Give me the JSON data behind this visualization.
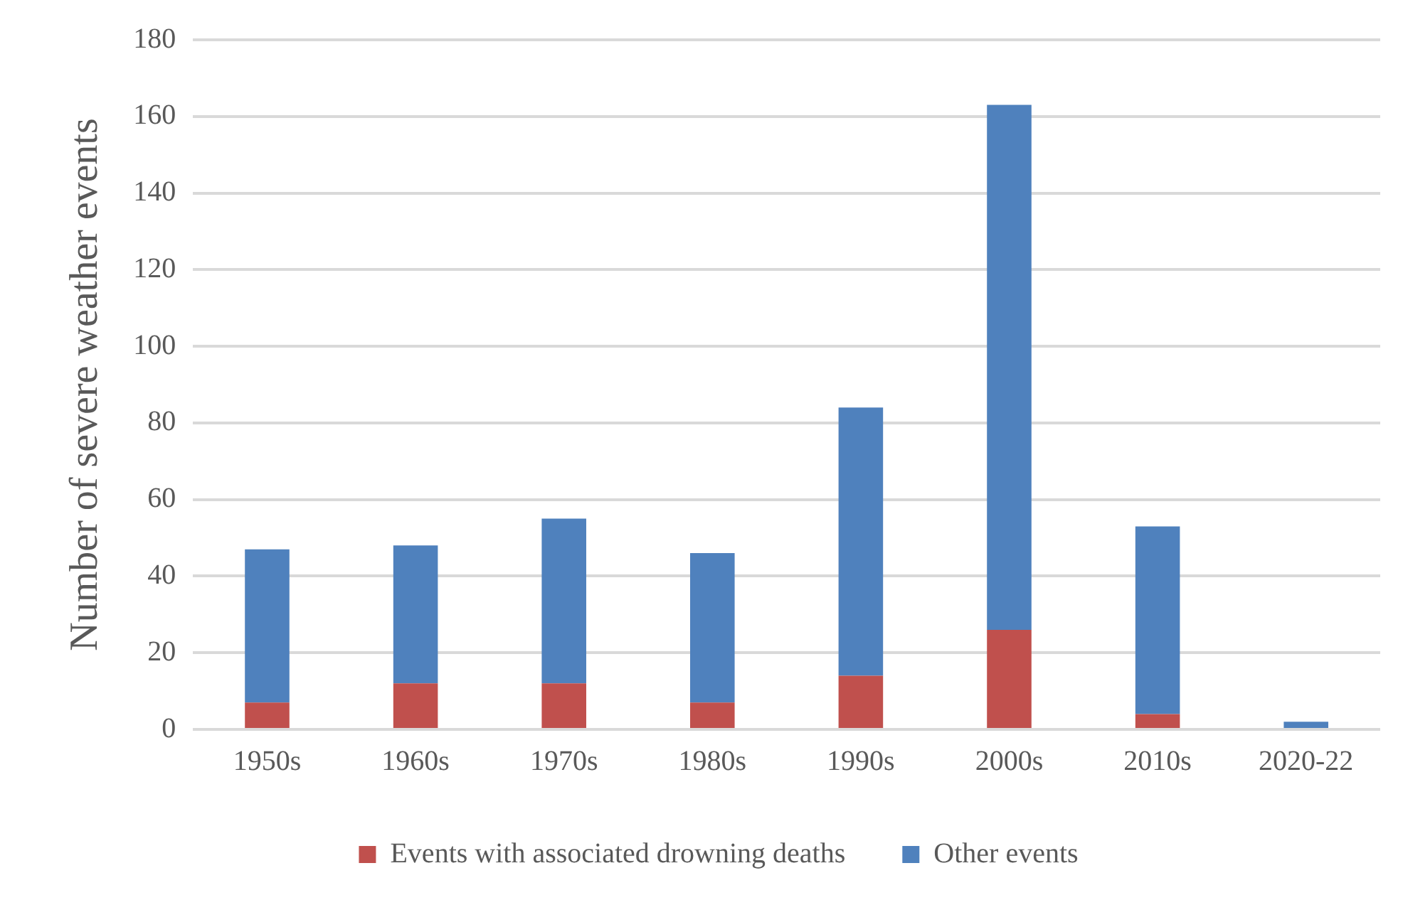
{
  "chart_data": {
    "type": "bar",
    "stacked": true,
    "ylabel": "Number of severe weather events",
    "categories": [
      "1950s",
      "1960s",
      "1970s",
      "1980s",
      "1990s",
      "2000s",
      "2010s",
      "2020-22"
    ],
    "series": [
      {
        "name": "Events with associated drowning deaths",
        "color": "#c0504d",
        "values": [
          7,
          12,
          12,
          7,
          14,
          26,
          4,
          0
        ]
      },
      {
        "name": "Other events",
        "color": "#4f81bd",
        "values": [
          40,
          36,
          43,
          39,
          70,
          137,
          49,
          2
        ]
      }
    ],
    "ylim": [
      0,
      180
    ],
    "yticks": [
      0,
      20,
      40,
      60,
      80,
      100,
      120,
      140,
      160,
      180
    ],
    "grid": "y",
    "legend": "bottom"
  }
}
